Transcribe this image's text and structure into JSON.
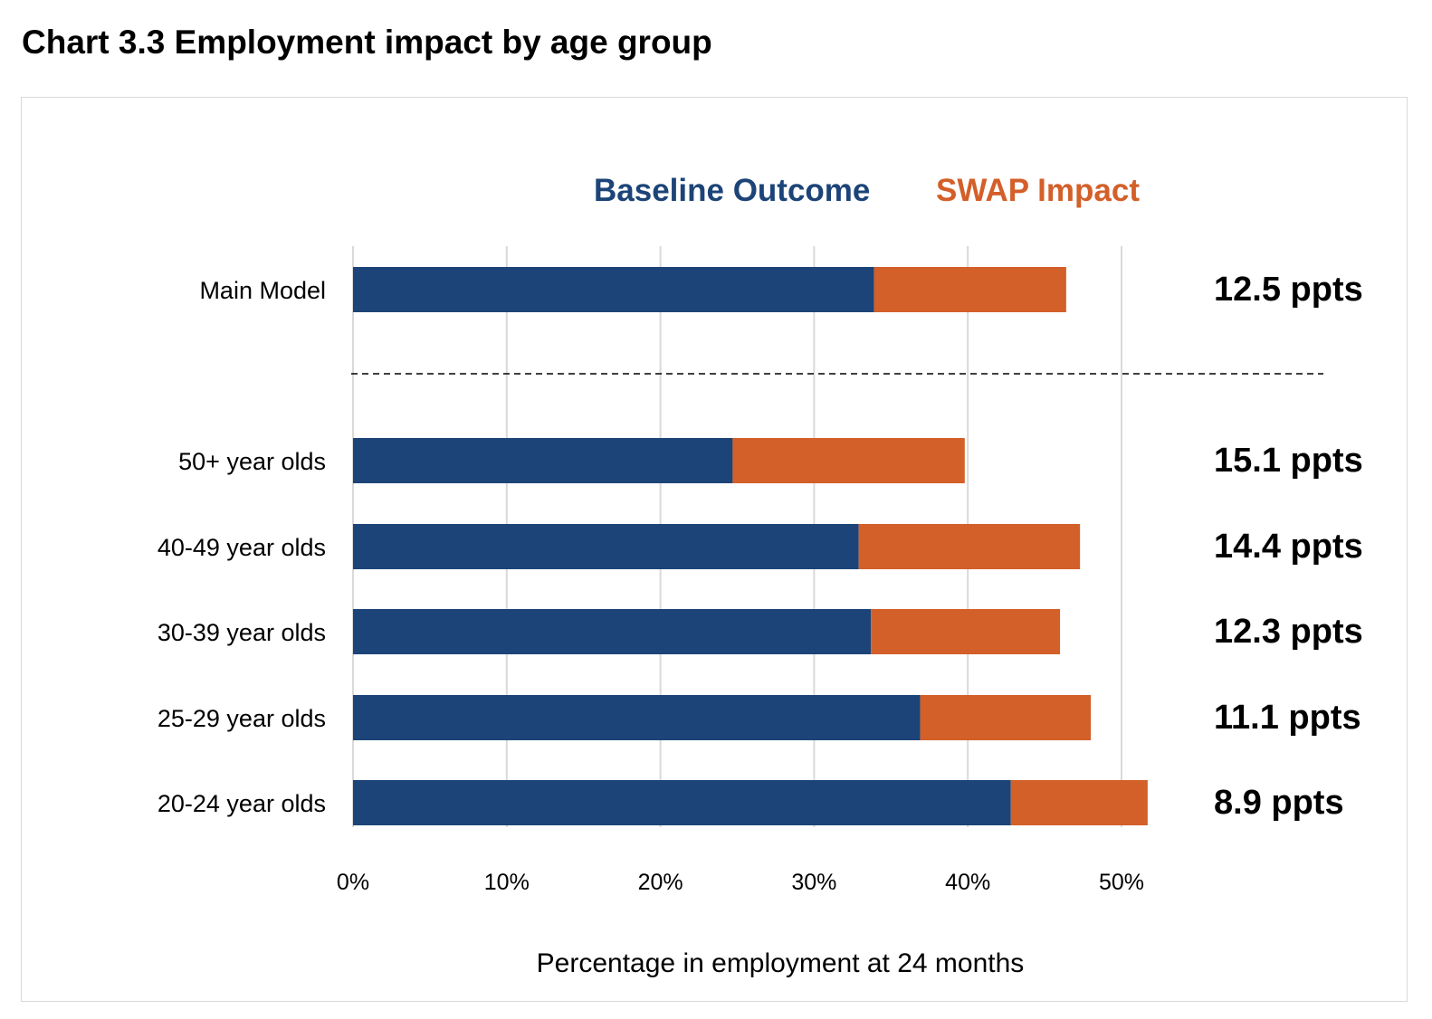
{
  "page_title": "Chart 3.3 Employment impact by age group",
  "chart_data": {
    "type": "bar",
    "orientation": "horizontal",
    "stacked": true,
    "categories": [
      "Main Model",
      "50+ year olds",
      "40-49 year olds",
      "30-39 year olds",
      "25-29 year olds",
      "20-24 year olds"
    ],
    "series": [
      {
        "name": "Baseline Outcome",
        "values": [
          33.9,
          24.7,
          32.9,
          33.7,
          36.9,
          42.8
        ]
      },
      {
        "name": "SWAP Impact",
        "values": [
          12.5,
          15.1,
          14.4,
          12.3,
          11.1,
          8.9
        ]
      }
    ],
    "data_labels": [
      "12.5 ppts",
      "15.1 ppts",
      "14.4 ppts",
      "12.3 ppts",
      "11.1 ppts",
      "8.9 ppts"
    ],
    "x_ticks": [
      "0%",
      "10%",
      "20%",
      "30%",
      "40%",
      "50%"
    ],
    "x_tick_values": [
      0,
      10,
      20,
      30,
      40,
      50
    ],
    "xlim": [
      0,
      50
    ],
    "xlabel": "Percentage in employment at 24 months",
    "ylabel": "",
    "grid": true,
    "legend_position": "top",
    "separator_after_category": "Main Model",
    "colors": {
      "Baseline Outcome": "#1c4478",
      "SWAP Impact": "#d35f29",
      "grid": "#d9d9d9"
    }
  }
}
